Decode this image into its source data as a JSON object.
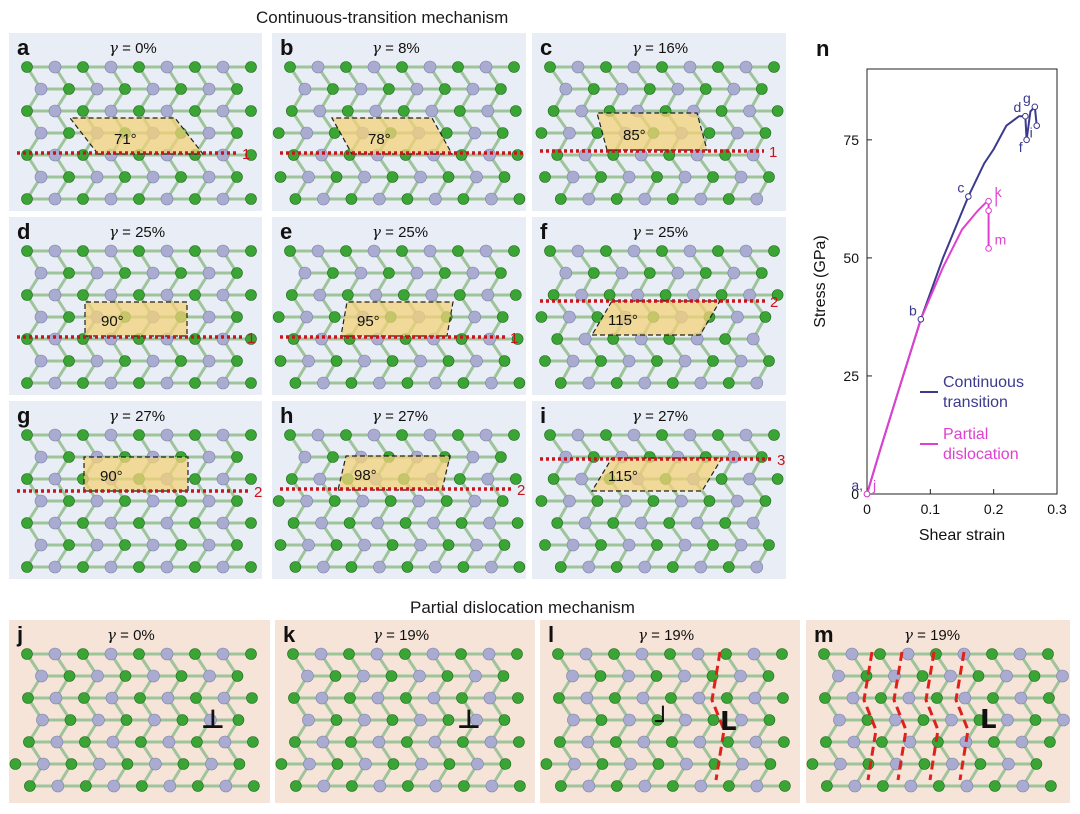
{
  "headers": {
    "top": "Continuous-transition mechanism",
    "bottom": "Partial dislocation mechanism"
  },
  "gamma_symbol": "γ",
  "panels_top": [
    {
      "label": "a",
      "gamma": " = 0%",
      "angle": "71°",
      "line": "1"
    },
    {
      "label": "b",
      "gamma": " = 8%",
      "angle": "78°",
      "line": "1"
    },
    {
      "label": "c",
      "gamma": " = 16%",
      "angle": "85°",
      "line": "1"
    },
    {
      "label": "d",
      "gamma": " = 25%",
      "angle": "90°",
      "line": "1"
    },
    {
      "label": "e",
      "gamma": " = 25%",
      "angle": "95°",
      "line": "1"
    },
    {
      "label": "f",
      "gamma": " = 25%",
      "angle": "115°",
      "line": "2"
    },
    {
      "label": "g",
      "gamma": " = 27%",
      "angle": "90°",
      "line": "2"
    },
    {
      "label": "h",
      "gamma": " = 27%",
      "angle": "98°",
      "line": "2"
    },
    {
      "label": "i",
      "gamma": " = 27%",
      "angle": "115°",
      "line": "3"
    }
  ],
  "panels_bottom": [
    {
      "label": "j",
      "gamma": " = 0%"
    },
    {
      "label": "k",
      "gamma": " = 19%"
    },
    {
      "label": "l",
      "gamma": " = 19%"
    },
    {
      "label": "m",
      "gamma": " = 19%"
    }
  ],
  "colors": {
    "atom_green": "#3aa535",
    "atom_gray": "#a9acd0",
    "parallelogram": "#f3d27a",
    "line_red": "#c8151b",
    "continuous": "#3c3a8c",
    "partial": "#e040d0",
    "panel_blue": "#e9eef6",
    "panel_peach": "#f7e4d8"
  },
  "chart_data": {
    "panel_label": "n",
    "type": "line",
    "xlabel": "Shear strain",
    "ylabel": "Stress (GPa)",
    "xlim": [
      0,
      0.3
    ],
    "ylim": [
      0,
      90
    ],
    "xticks": [
      "0",
      "0.1",
      "0.2",
      "0.3"
    ],
    "yticks": [
      "0",
      "25",
      "50",
      "75"
    ],
    "legend_position": "center-right",
    "series": [
      {
        "name": "Continuous transition",
        "color": "#3c3a8c",
        "x": [
          0,
          0.02,
          0.05,
          0.085,
          0.12,
          0.16,
          0.185,
          0.2,
          0.22,
          0.24,
          0.25,
          0.252,
          0.258,
          0.265,
          0.268
        ],
        "y": [
          0,
          9,
          22,
          37,
          50,
          63,
          70,
          73,
          78,
          80,
          80,
          75,
          81,
          82,
          78
        ]
      },
      {
        "name": "Partial dislocation",
        "color": "#e040d0",
        "x": [
          0,
          0.02,
          0.05,
          0.085,
          0.12,
          0.15,
          0.175,
          0.19,
          0.192,
          0.192,
          0.192
        ],
        "y": [
          0,
          9,
          22,
          37,
          48,
          56,
          60,
          62,
          62,
          60,
          52
        ]
      }
    ],
    "annotations_continuous": [
      {
        "text": "a,",
        "x": 0,
        "y": 0
      },
      {
        "text": "b",
        "x": 0.085,
        "y": 37
      },
      {
        "text": "c",
        "x": 0.16,
        "y": 63
      },
      {
        "text": "d",
        "x": 0.25,
        "y": 80
      },
      {
        "text": "f",
        "x": 0.252,
        "y": 75
      },
      {
        "text": "g",
        "x": 0.265,
        "y": 82
      },
      {
        "text": "i",
        "x": 0.268,
        "y": 78
      }
    ],
    "annotations_partial": [
      {
        "text": "j",
        "x": 0,
        "y": 0
      },
      {
        "text": "k",
        "x": 0.192,
        "y": 62
      },
      {
        "text": "l",
        "x": 0.192,
        "y": 60
      },
      {
        "text": "m",
        "x": 0.192,
        "y": 52
      }
    ]
  }
}
